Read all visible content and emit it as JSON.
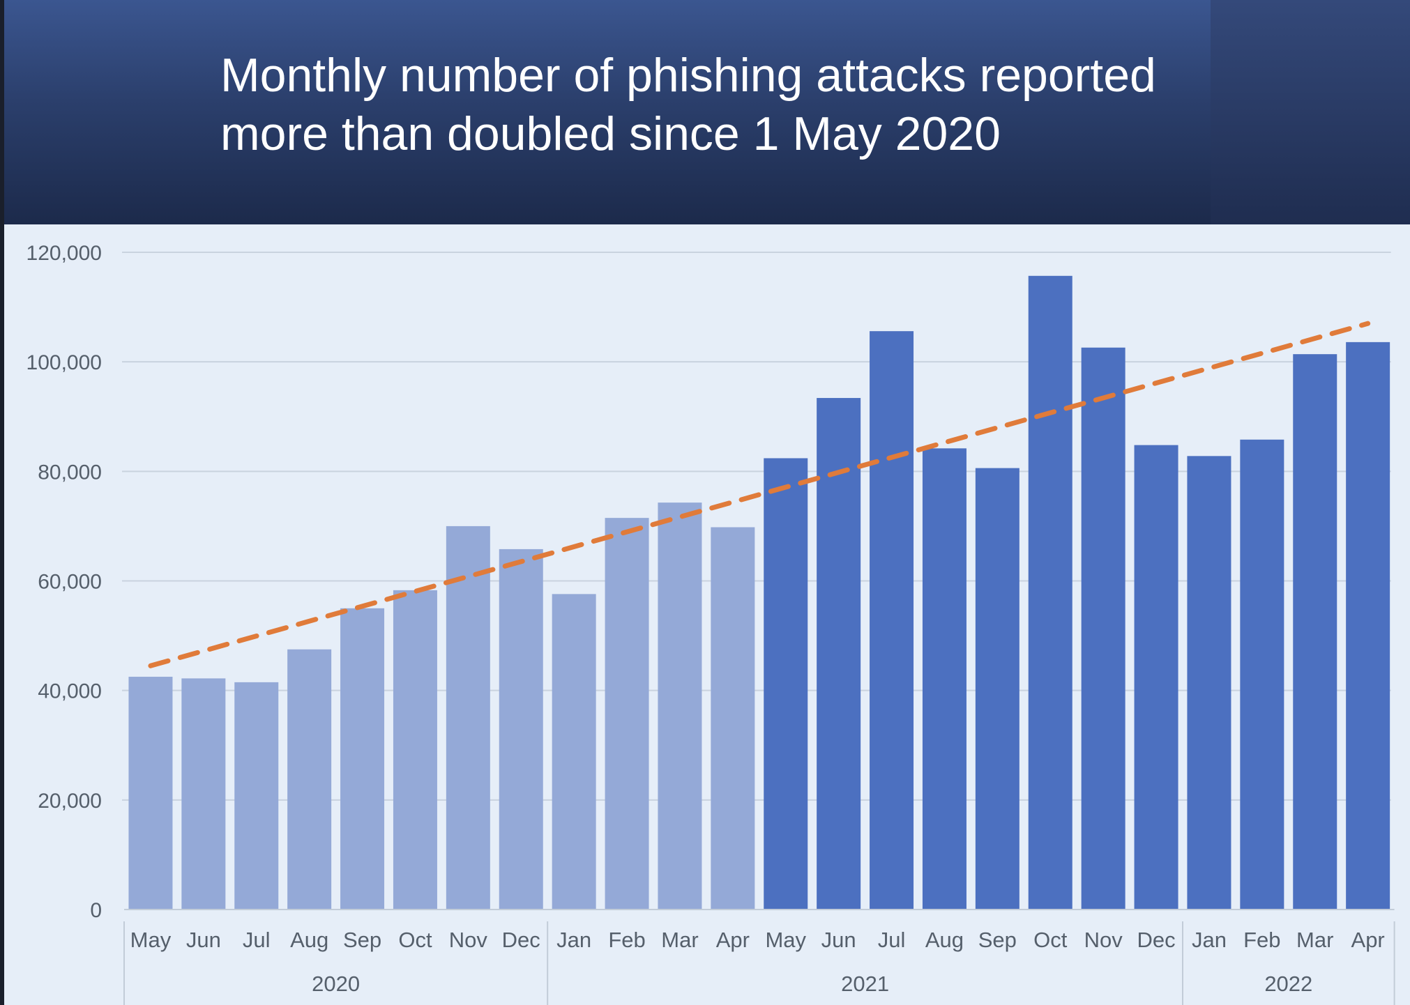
{
  "header": {
    "title_line1": "Monthly number of phishing attacks reported",
    "title_line2": "more than doubled since 1 May 2020"
  },
  "chart_data": {
    "type": "bar",
    "title": "Monthly number of phishing attacks reported more than doubled since 1 May 2020",
    "categories": [
      "May",
      "Jun",
      "Jul",
      "Aug",
      "Sep",
      "Oct",
      "Nov",
      "Dec",
      "Jan",
      "Feb",
      "Mar",
      "Apr",
      "May",
      "Jun",
      "Jul",
      "Aug",
      "Sep",
      "Oct",
      "Nov",
      "Dec",
      "Jan",
      "Feb",
      "Mar",
      "Apr"
    ],
    "year_groups": [
      {
        "label": "2020",
        "count": 8
      },
      {
        "label": "2021",
        "count": 12
      },
      {
        "label": "2022",
        "count": 4
      }
    ],
    "values": [
      42500,
      42200,
      41500,
      47500,
      55000,
      58300,
      70000,
      65800,
      57600,
      71500,
      74300,
      69800,
      82400,
      93400,
      105600,
      84200,
      80600,
      115700,
      102600,
      84800,
      82800,
      85800,
      101400,
      103600
    ],
    "trend_line": {
      "start": 44500,
      "end": 107000,
      "color": "#e07b3a",
      "style": "dashed"
    },
    "colors": {
      "light_bar": "#94a9d7",
      "dark_bar": "#4c70c0",
      "light_bar_count": 12
    },
    "yticks": [
      "0",
      "20,000",
      "40,000",
      "60,000",
      "80,000",
      "100,000",
      "120,000"
    ],
    "ylim": [
      0,
      120000
    ],
    "xlabel": "",
    "ylabel": "",
    "grid": true
  }
}
